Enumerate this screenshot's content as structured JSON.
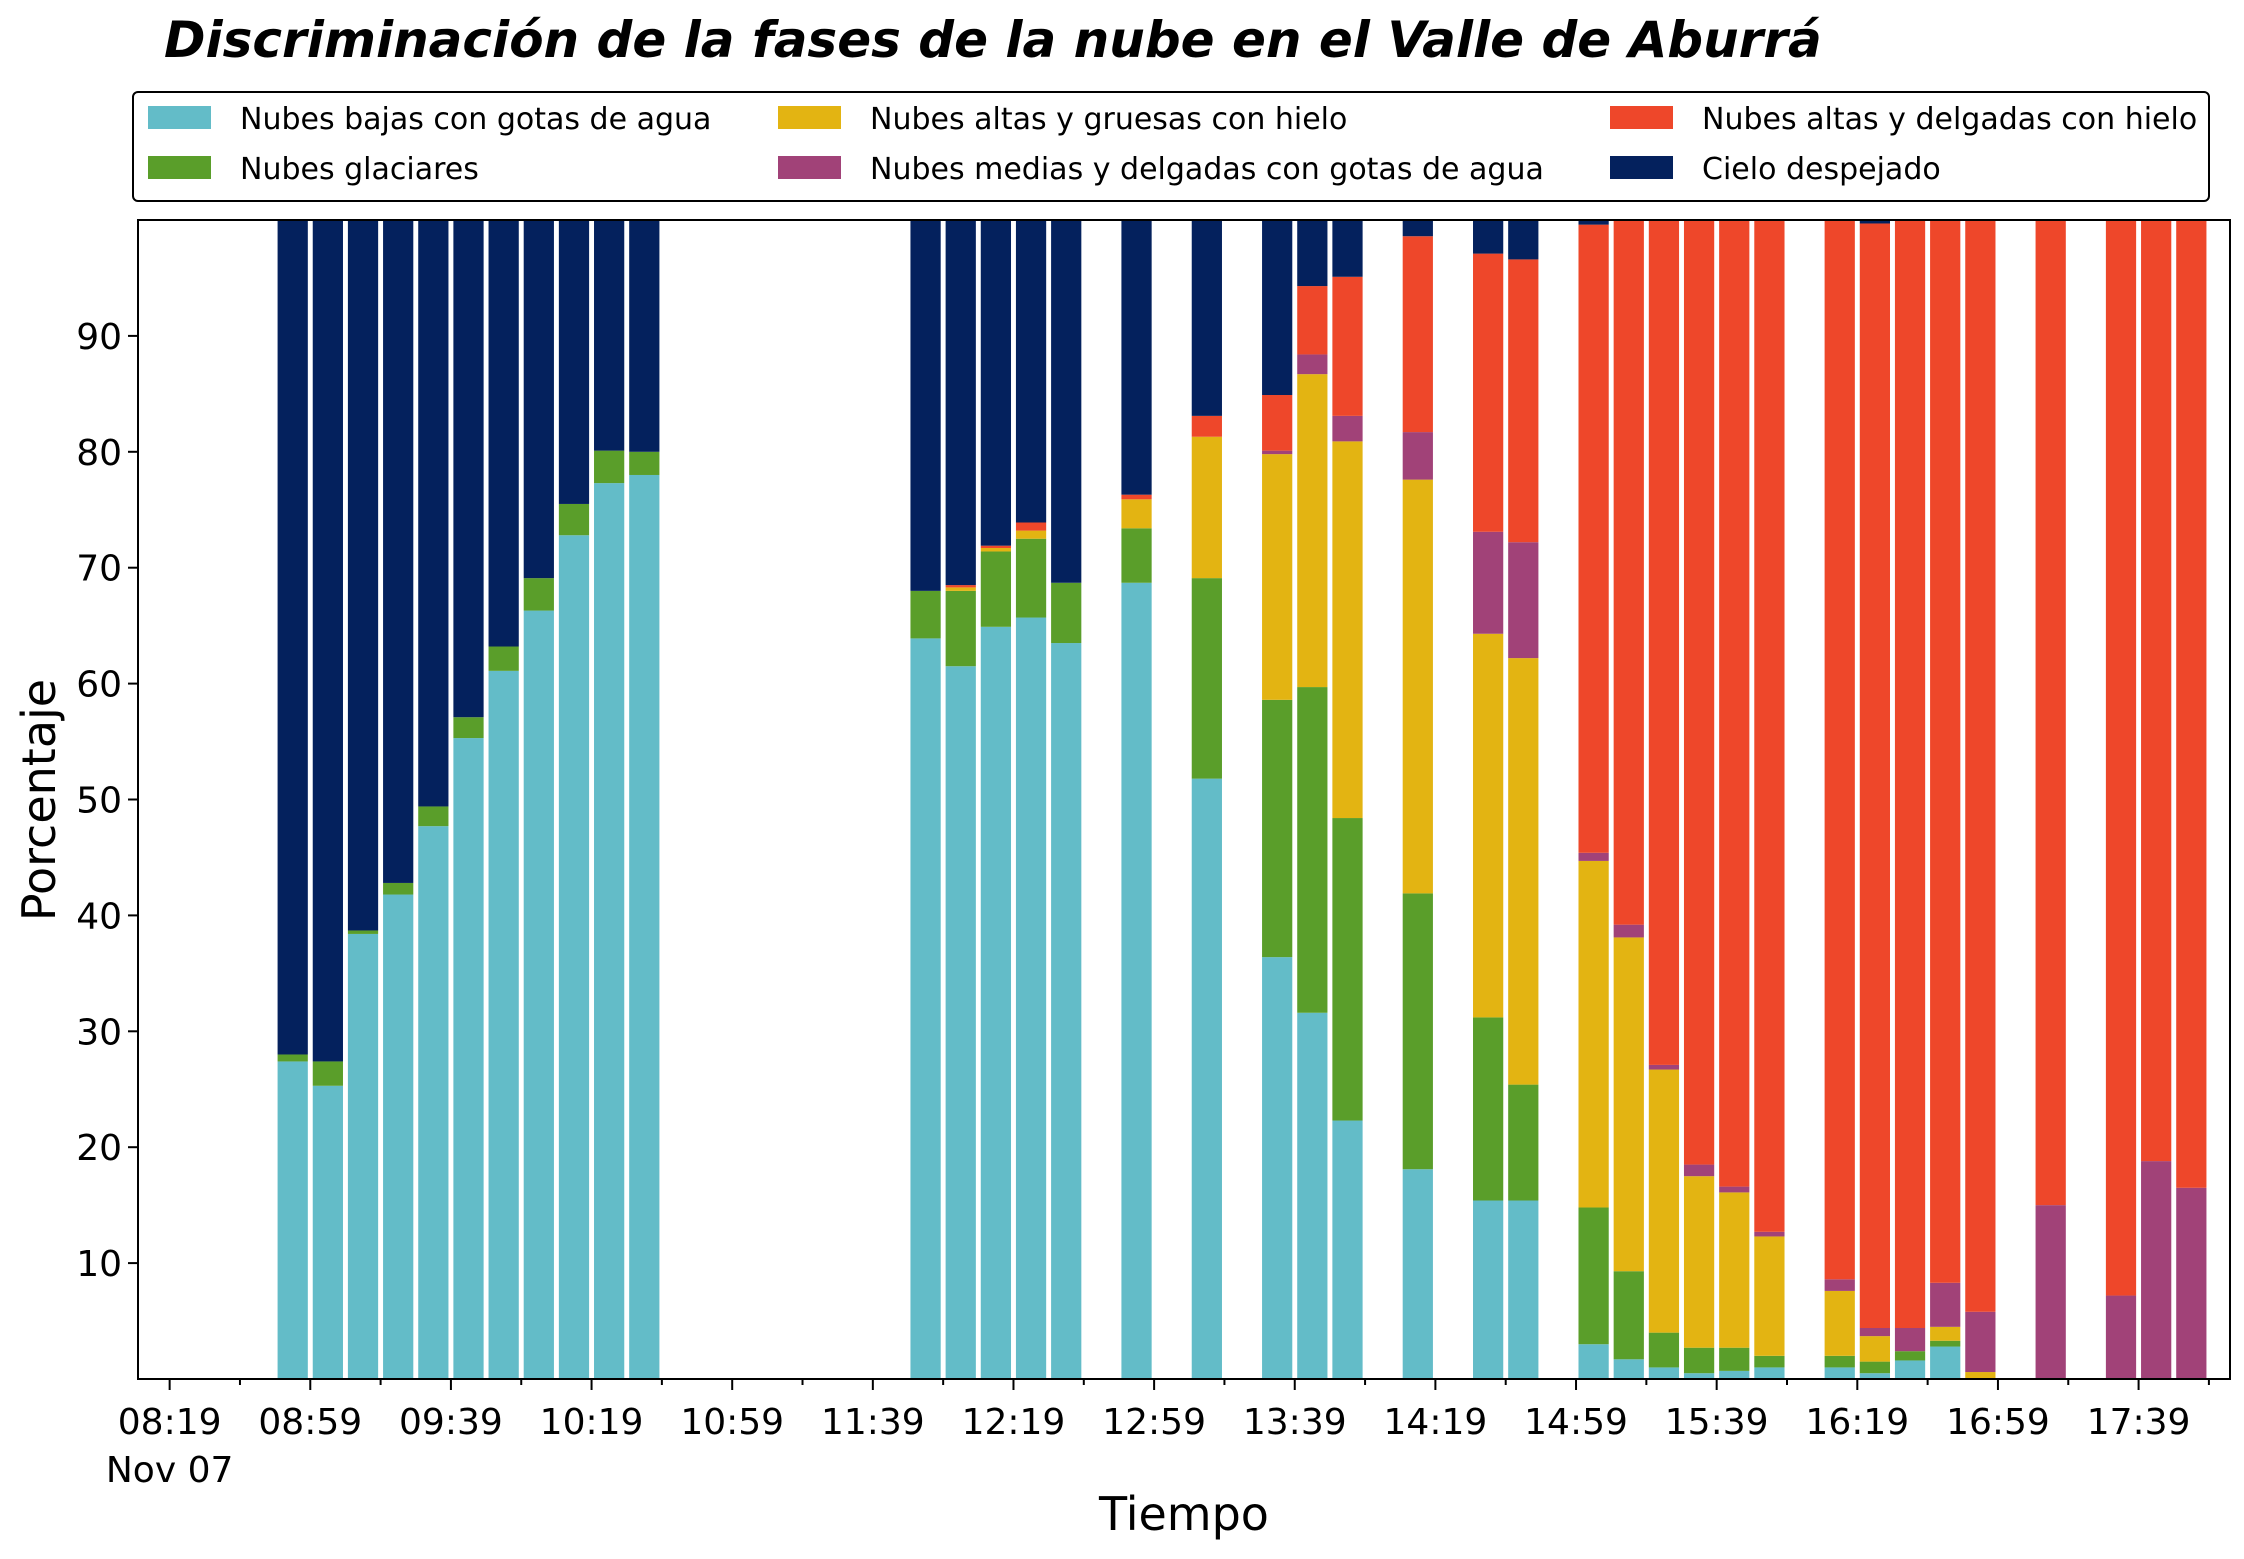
{
  "chart_data": {
    "type": "bar",
    "stacked": true,
    "title": "Discriminación de la fases de la nube en el Valle de Aburrá",
    "xlabel": "Tiempo",
    "ylabel": "Porcentaje",
    "ylim": [
      0,
      100
    ],
    "yticks": [
      10,
      20,
      30,
      40,
      50,
      60,
      70,
      80,
      90
    ],
    "xlim_minutes": [
      490,
      1085
    ],
    "xticks": [
      {
        "label": "08:19",
        "minute": 499
      },
      {
        "label": "08:59",
        "minute": 539
      },
      {
        "label": "09:39",
        "minute": 579
      },
      {
        "label": "10:19",
        "minute": 619
      },
      {
        "label": "10:59",
        "minute": 659
      },
      {
        "label": "11:39",
        "minute": 699
      },
      {
        "label": "12:19",
        "minute": 739
      },
      {
        "label": "12:59",
        "minute": 779
      },
      {
        "label": "13:39",
        "minute": 819
      },
      {
        "label": "14:19",
        "minute": 859
      },
      {
        "label": "14:59",
        "minute": 899
      },
      {
        "label": "15:39",
        "minute": 939
      },
      {
        "label": "16:19",
        "minute": 979
      },
      {
        "label": "16:59",
        "minute": 1019
      },
      {
        "label": "17:39",
        "minute": 1059
      }
    ],
    "date_label": "Nov 07",
    "grid": false,
    "legend_position": "top",
    "series": [
      {
        "name": "Nubes bajas con gotas de agua",
        "color": "#63bcc8"
      },
      {
        "name": "Nubes glaciares",
        "color": "#5a9e2a"
      },
      {
        "name": "Nubes altas y gruesas con hielo",
        "color": "#e3b412"
      },
      {
        "name": "Nubes medias y delgadas con gotas de agua",
        "color": "#a14278"
      },
      {
        "name": "Nubes altas y delgadas con hielo",
        "color": "#ee472a"
      },
      {
        "name": "Cielo despejado",
        "color": "#04215d"
      }
    ],
    "bars": [
      {
        "time": "08:54",
        "minute": 534,
        "values": [
          27.4,
          0.6,
          0,
          0,
          0,
          72.0
        ]
      },
      {
        "time": "09:04",
        "minute": 544,
        "values": [
          25.3,
          2.1,
          0,
          0,
          0,
          72.6
        ]
      },
      {
        "time": "09:14",
        "minute": 554,
        "values": [
          38.4,
          0.3,
          0,
          0,
          0,
          61.3
        ]
      },
      {
        "time": "09:24",
        "minute": 564,
        "values": [
          41.8,
          1.0,
          0,
          0,
          0,
          57.2
        ]
      },
      {
        "time": "09:34",
        "minute": 574,
        "values": [
          47.7,
          1.7,
          0,
          0,
          0,
          50.6
        ]
      },
      {
        "time": "09:44",
        "minute": 584,
        "values": [
          55.3,
          1.8,
          0,
          0,
          0,
          42.9
        ]
      },
      {
        "time": "09:54",
        "minute": 594,
        "values": [
          61.1,
          2.1,
          0,
          0,
          0,
          36.8
        ]
      },
      {
        "time": "10:04",
        "minute": 604,
        "values": [
          66.3,
          2.8,
          0,
          0,
          0,
          30.9
        ]
      },
      {
        "time": "10:14",
        "minute": 614,
        "values": [
          72.8,
          2.7,
          0,
          0,
          0,
          24.5
        ]
      },
      {
        "time": "10:24",
        "minute": 624,
        "values": [
          77.3,
          2.8,
          0,
          0,
          0,
          19.9
        ]
      },
      {
        "time": "10:34",
        "minute": 634,
        "values": [
          78.0,
          2.0,
          0,
          0,
          0,
          20.0
        ]
      },
      {
        "time": "11:54",
        "minute": 714,
        "values": [
          63.9,
          4.1,
          0,
          0,
          0,
          32.0
        ]
      },
      {
        "time": "12:04",
        "minute": 724,
        "values": [
          61.5,
          6.5,
          0.3,
          0,
          0.2,
          31.5
        ]
      },
      {
        "time": "12:14",
        "minute": 734,
        "values": [
          64.9,
          6.5,
          0.3,
          0,
          0.2,
          28.1
        ]
      },
      {
        "time": "12:24",
        "minute": 744,
        "values": [
          65.7,
          6.8,
          0.7,
          0,
          0.7,
          26.1
        ]
      },
      {
        "time": "12:34",
        "minute": 754,
        "values": [
          63.5,
          5.2,
          0,
          0,
          0,
          31.3
        ]
      },
      {
        "time": "12:54",
        "minute": 774,
        "values": [
          68.7,
          4.7,
          2.5,
          0,
          0.4,
          23.7
        ]
      },
      {
        "time": "13:14",
        "minute": 794,
        "values": [
          51.8,
          17.3,
          12.2,
          0,
          1.8,
          16.9
        ]
      },
      {
        "time": "13:34",
        "minute": 814,
        "values": [
          36.4,
          22.2,
          21.2,
          0.3,
          4.8,
          15.1
        ]
      },
      {
        "time": "13:44",
        "minute": 824,
        "values": [
          31.6,
          28.1,
          27.0,
          1.7,
          5.9,
          5.7
        ]
      },
      {
        "time": "13:54",
        "minute": 834,
        "values": [
          22.3,
          26.1,
          32.5,
          2.2,
          12.0,
          4.9
        ]
      },
      {
        "time": "14:14",
        "minute": 854,
        "values": [
          18.1,
          23.8,
          35.7,
          4.1,
          16.9,
          1.4
        ]
      },
      {
        "time": "14:34",
        "minute": 874,
        "values": [
          15.4,
          15.8,
          33.1,
          8.8,
          24.0,
          2.9
        ]
      },
      {
        "time": "14:44",
        "minute": 884,
        "values": [
          15.4,
          10.0,
          36.8,
          10.0,
          24.4,
          3.4
        ]
      },
      {
        "time": "15:04",
        "minute": 904,
        "values": [
          3.0,
          11.8,
          29.9,
          0.7,
          54.2,
          0.4
        ]
      },
      {
        "time": "15:14",
        "minute": 914,
        "values": [
          1.7,
          7.6,
          28.8,
          1.1,
          60.8,
          0.3
        ]
      },
      {
        "time": "15:24",
        "minute": 924,
        "values": [
          1.0,
          3.0,
          22.7,
          0.4,
          72.9,
          0
        ]
      },
      {
        "time": "15:34",
        "minute": 934,
        "values": [
          0.5,
          2.2,
          14.8,
          1.0,
          81.5,
          0
        ]
      },
      {
        "time": "15:44",
        "minute": 944,
        "values": [
          0.7,
          2.0,
          13.4,
          0.5,
          83.4,
          0
        ]
      },
      {
        "time": "15:54",
        "minute": 954,
        "values": [
          1.0,
          1.0,
          10.3,
          0.4,
          87.3,
          0
        ]
      },
      {
        "time": "16:14",
        "minute": 974,
        "values": [
          1.0,
          1.0,
          5.6,
          1.0,
          91.4,
          0
        ]
      },
      {
        "time": "16:24",
        "minute": 984,
        "values": [
          0.5,
          1.0,
          2.2,
          0.7,
          95.3,
          0.3
        ]
      },
      {
        "time": "16:34",
        "minute": 994,
        "values": [
          1.6,
          0.8,
          0,
          2.0,
          95.6,
          0
        ]
      },
      {
        "time": "16:44",
        "minute": 1004,
        "values": [
          2.8,
          0.5,
          1.2,
          3.8,
          91.7,
          0
        ]
      },
      {
        "time": "16:54",
        "minute": 1014,
        "values": [
          0,
          0,
          0.6,
          5.2,
          94.2,
          0
        ]
      },
      {
        "time": "17:14",
        "minute": 1034,
        "values": [
          0,
          0,
          0,
          15.0,
          85.0,
          0
        ]
      },
      {
        "time": "17:34",
        "minute": 1054,
        "values": [
          0,
          0,
          0,
          7.2,
          92.8,
          0
        ]
      },
      {
        "time": "17:44",
        "minute": 1064,
        "values": [
          0,
          0,
          0,
          18.8,
          81.2,
          0
        ]
      },
      {
        "time": "17:54",
        "minute": 1074,
        "values": [
          0,
          0,
          0,
          16.5,
          83.5,
          0
        ]
      }
    ]
  }
}
